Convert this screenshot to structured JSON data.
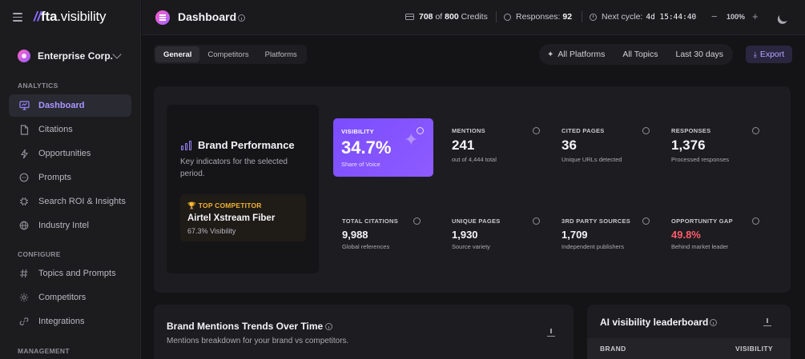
{
  "app": {
    "logo_slashes": "//",
    "logo_brand": "fta",
    "logo_suffix": ".visibility"
  },
  "org": {
    "name": "Enterprise Corp."
  },
  "sidebar": {
    "sections": [
      {
        "label": "ANALYTICS"
      },
      {
        "label": "CONFIGURE"
      },
      {
        "label": "MANAGEMENT"
      }
    ],
    "items": [
      {
        "label": "Dashboard",
        "icon": "monitor-icon",
        "active": true
      },
      {
        "label": "Citations",
        "icon": "file-icon"
      },
      {
        "label": "Opportunities",
        "icon": "bolt-icon"
      },
      {
        "label": "Prompts",
        "icon": "chat-icon"
      },
      {
        "label": "Search ROI & Insights",
        "icon": "chip-icon"
      },
      {
        "label": "Industry Intel",
        "icon": "globe-icon"
      },
      {
        "label": "Topics and Prompts",
        "icon": "hash-icon"
      },
      {
        "label": "Competitors",
        "icon": "sparkle-icon"
      },
      {
        "label": "Integrations",
        "icon": "link-icon"
      }
    ]
  },
  "header": {
    "title": "Dashboard",
    "credits_used": "708",
    "credits_of": "of",
    "credits_total": "800",
    "credits_label": "Credits",
    "responses_label": "Responses:",
    "responses_value": "92",
    "next_cycle_label": "Next cycle:",
    "next_cycle_value": "4d 15:44:40",
    "zoom": "100%",
    "zoom_minus": "−",
    "zoom_plus": "+"
  },
  "toolbar": {
    "tabs": [
      {
        "label": "General",
        "active": true
      },
      {
        "label": "Competitors"
      },
      {
        "label": "Platforms"
      }
    ],
    "filters": {
      "platforms": "All Platforms",
      "topics": "All Topics",
      "range": "Last 30 days"
    },
    "export_label": "Export"
  },
  "brand_performance": {
    "title": "Brand Performance",
    "description": "Key indicators for the selected period.",
    "top_competitor_label": "TOP COMPETITOR",
    "top_competitor_name": "Airtel Xstream Fiber",
    "top_competitor_sub": "67.3% Visibility"
  },
  "metrics": {
    "visibility": {
      "label": "VISIBILITY",
      "value": "34.7%",
      "sub": "Share of Voice"
    },
    "mentions": {
      "label": "MENTIONS",
      "value": "241",
      "sub": "out of 4,444 total"
    },
    "cited_pages": {
      "label": "CITED PAGES",
      "value": "36",
      "sub": "Unique URLs detected"
    },
    "responses": {
      "label": "RESPONSES",
      "value": "1,376",
      "sub": "Processed responses"
    },
    "total_citations": {
      "label": "TOTAL CITATIONS",
      "value": "9,988",
      "sub": "Global references"
    },
    "unique_pages": {
      "label": "UNIQUE PAGES",
      "value": "1,930",
      "sub": "Source variety"
    },
    "third_party": {
      "label": "3RD PARTY SOURCES",
      "value": "1,709",
      "sub": "Independent publishers"
    },
    "opportunity_gap": {
      "label": "OPPORTUNITY GAP",
      "value": "49.8%",
      "sub": "Behind market leader",
      "color": "#ff5b6b"
    }
  },
  "trends": {
    "title": "Brand Mentions Trends Over Time",
    "description": "Mentions breakdown for your brand vs competitors."
  },
  "leaderboard": {
    "title": "AI visibility leaderboard",
    "col_brand": "BRAND",
    "col_visibility": "VISIBILITY"
  },
  "colors": {
    "accent": "#8b6cff",
    "warning": "#f2b233",
    "danger": "#ff5b6b"
  }
}
